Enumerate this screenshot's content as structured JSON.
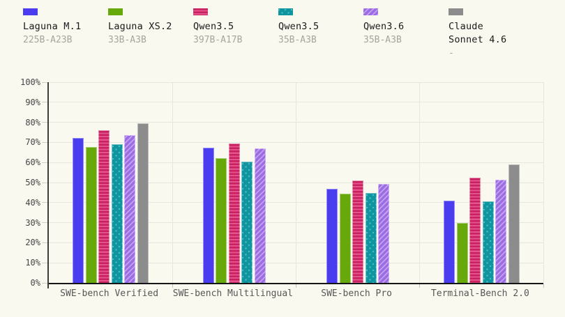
{
  "page": {
    "background": "#faf9f0"
  },
  "chart_data": {
    "type": "bar",
    "title": "",
    "xlabel": "",
    "ylabel": "",
    "ylim": [
      0,
      100
    ],
    "grid": true,
    "legend_position": "top",
    "yticks": [
      "0%",
      "10%",
      "20%",
      "30%",
      "40%",
      "50%",
      "60%",
      "70%",
      "80%",
      "90%",
      "100%"
    ],
    "categories": [
      "SWE-bench Verified",
      "SWE-bench Multilingual",
      "SWE-bench Pro",
      "Terminal-Bench 2.0"
    ],
    "series": [
      {
        "name": "Laguna M.1",
        "sub": "225B-A23B",
        "pattern": "solid",
        "color": "#4a3df0",
        "values": [
          72.4,
          67.3,
          46.9,
          41.0
        ]
      },
      {
        "name": "Laguna XS.2",
        "sub": "33B-A3B",
        "pattern": "solid",
        "color": "#67a90a",
        "values": [
          67.8,
          62.3,
          44.5,
          30.0
        ]
      },
      {
        "name": "Qwen3.5",
        "sub": "397B-A17B",
        "pattern": "hstripes",
        "color": "#c9215f",
        "color2": "#e2548b",
        "values": [
          76.2,
          69.3,
          50.9,
          52.4
        ]
      },
      {
        "name": "Qwen3.5",
        "sub": "35B-A3B",
        "pattern": "dots",
        "color": "#0e95a0",
        "color2": "#53b9c2",
        "values": [
          69.2,
          60.3,
          44.7,
          40.6
        ]
      },
      {
        "name": "Qwen3.6",
        "sub": "35B-A3B",
        "pattern": "dstripes",
        "color": "#9d6ce2",
        "color2": "#c2a2f2",
        "values": [
          73.5,
          67.1,
          49.4,
          51.5
        ]
      },
      {
        "name": "Claude Sonnet 4.6",
        "sub": "-",
        "pattern": "solid",
        "color": "#8c8c8c",
        "values": [
          79.5,
          null,
          null,
          58.9
        ]
      }
    ],
    "colors": {
      "page_bg": "#faf9f0",
      "gridline": "#e7e6de",
      "y_axis": "#3c3c3c",
      "x_axis": "#161616",
      "y_label": "#454545",
      "x_label": "#565656",
      "legend_name": "#1a1a1a",
      "legend_sub": "#a6a59d"
    }
  }
}
